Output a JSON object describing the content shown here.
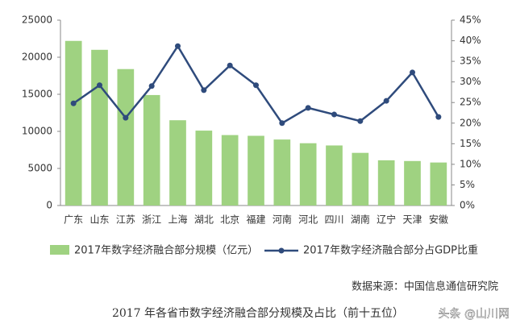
{
  "chart_data": {
    "type": "bar_line",
    "categories": [
      "广东",
      "山东",
      "江苏",
      "浙江",
      "上海",
      "湖北",
      "北京",
      "福建",
      "河南",
      "河北",
      "四川",
      "湖南",
      "辽宁",
      "天津",
      "安徽"
    ],
    "series": [
      {
        "name": "2017年数字经济融合部分规模（亿元）",
        "color": "#9fd281",
        "type": "bar",
        "values": [
          22200,
          21000,
          18400,
          14900,
          11500,
          10100,
          9500,
          9400,
          8900,
          8400,
          8100,
          7100,
          6100,
          6000,
          5800
        ]
      },
      {
        "name": "2017年数字经济融合部分占GDP比重",
        "color": "#2f4b7c",
        "type": "line",
        "axis": "y2",
        "values": [
          24.8,
          29.2,
          21.3,
          29.0,
          38.7,
          28.0,
          34.0,
          29.2,
          20.0,
          23.7,
          22.1,
          20.5,
          25.4,
          32.3,
          21.5
        ]
      }
    ],
    "ylim": [
      0,
      25000
    ],
    "yticks": [
      0,
      5000,
      10000,
      15000,
      20000,
      25000
    ],
    "y2lim": [
      0,
      45
    ],
    "y2ticks": [
      {
        "value": 0,
        "label": "0%"
      },
      {
        "value": 5,
        "label": "5%"
      },
      {
        "value": 10,
        "label": "10%"
      },
      {
        "value": 15,
        "label": "15%"
      },
      {
        "value": 20,
        "label": "20%"
      },
      {
        "value": 25,
        "label": "25%"
      },
      {
        "value": 30,
        "label": "30%"
      },
      {
        "value": 35,
        "label": "35%"
      },
      {
        "value": 40,
        "label": "40%"
      },
      {
        "value": 45,
        "label": "45%"
      }
    ],
    "grid": false,
    "source": "数据来源：中国信息通信研究院",
    "caption": "2017 年各省市数字经济融合部分规模及占比（前十五位）",
    "watermark": "头条 @山川网"
  }
}
